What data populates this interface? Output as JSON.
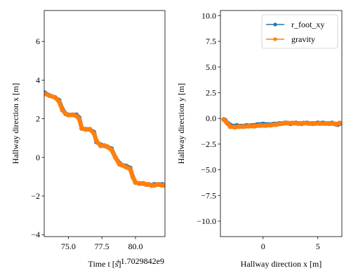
{
  "colors": {
    "series1": "#1f77b4",
    "series2": "#ff7f0e",
    "axis": "#000000",
    "legend_border": "#cccccc"
  },
  "chart_data": [
    {
      "type": "scatter",
      "title": "",
      "xlabel": "Time $t$ [s]",
      "xlabel_display": "Time t [s]",
      "offset_text": "+1.7029842e9",
      "ylabel": "Hallway direction $x$ [m]",
      "ylabel_display": "Hallway direction x [m]",
      "xlim": [
        73.2,
        82.2
      ],
      "ylim": [
        -4.1,
        7.6
      ],
      "xticks": [
        75.0,
        77.5,
        80.0
      ],
      "xtick_labels": [
        "75.0",
        "77.5",
        "80.0"
      ],
      "yticks": [
        -4,
        -2,
        0,
        2,
        4,
        6
      ],
      "ytick_labels": [
        "−4",
        "−2",
        "0",
        "2",
        "4",
        "6"
      ],
      "legend": "none",
      "grid": false,
      "series": [
        {
          "color_key": "series1",
          "x": [
            73.2,
            73.6,
            74.0,
            74.3,
            74.55,
            74.8,
            75.0,
            75.3,
            75.6,
            75.8,
            76.0,
            76.3,
            76.6,
            76.9,
            77.1,
            77.4,
            77.7,
            77.9,
            78.2,
            78.5,
            78.8,
            79.0,
            79.3,
            79.6,
            79.8,
            80.0,
            80.3,
            80.6,
            80.8,
            81.0,
            81.2,
            81.4,
            81.7,
            82.0,
            82.2
          ],
          "y": [
            3.35,
            3.2,
            3.1,
            2.95,
            2.5,
            2.25,
            2.2,
            2.2,
            2.2,
            2.05,
            1.5,
            1.45,
            1.45,
            1.3,
            0.8,
            0.65,
            0.6,
            0.55,
            0.45,
            0.0,
            -0.3,
            -0.4,
            -0.45,
            -0.55,
            -1.0,
            -1.3,
            -1.35,
            -1.35,
            -1.4,
            -1.4,
            -1.45,
            -1.4,
            -1.4,
            -1.4,
            -1.45
          ]
        },
        {
          "color_key": "series2",
          "x": [
            73.2,
            73.6,
            74.0,
            74.3,
            74.55,
            74.8,
            75.0,
            75.3,
            75.6,
            75.8,
            76.0,
            76.3,
            76.6,
            76.9,
            77.1,
            77.4,
            77.7,
            77.9,
            78.2,
            78.5,
            78.8,
            79.0,
            79.3,
            79.6,
            79.8,
            80.0,
            80.3,
            80.6,
            80.8,
            81.0,
            81.2,
            81.4,
            81.7,
            82.0,
            82.2
          ],
          "y": [
            3.3,
            3.2,
            3.1,
            2.9,
            2.45,
            2.25,
            2.2,
            2.2,
            2.15,
            2.0,
            1.5,
            1.45,
            1.45,
            1.25,
            0.85,
            0.6,
            0.6,
            0.55,
            0.4,
            0.0,
            -0.35,
            -0.4,
            -0.5,
            -0.6,
            -1.0,
            -1.3,
            -1.35,
            -1.35,
            -1.4,
            -1.4,
            -1.45,
            -1.45,
            -1.4,
            -1.45,
            -1.45
          ]
        }
      ]
    },
    {
      "type": "line",
      "title": "",
      "xlabel": "Hallway direction $x$ [m]",
      "xlabel_display": "Hallway direction x [m]",
      "ylabel": "Hallway direction $y$ [m]",
      "ylabel_display": "Hallway direction y [m]",
      "xlim": [
        -3.9,
        7.2
      ],
      "ylim": [
        -11.5,
        10.5
      ],
      "xticks": [
        0,
        5
      ],
      "xtick_labels": [
        "0",
        "5"
      ],
      "yticks": [
        -10.0,
        -7.5,
        -5.0,
        -2.5,
        0.0,
        2.5,
        5.0,
        7.5,
        10.0
      ],
      "ytick_labels": [
        "−10.0",
        "−7.5",
        "−5.0",
        "−2.5",
        "0.0",
        "2.5",
        "5.0",
        "7.5",
        "10.0"
      ],
      "legend": "top-right",
      "grid": false,
      "series": [
        {
          "name": "r_foot_xy",
          "color_key": "series1",
          "x": [
            -3.5,
            -3.2,
            -2.8,
            -2.4,
            -2.0,
            -1.5,
            -1.0,
            -0.5,
            0.0,
            0.5,
            1.0,
            1.5,
            2.0,
            2.5,
            3.0,
            3.5,
            4.0,
            4.5,
            5.0,
            5.5,
            6.0,
            6.3,
            6.6,
            6.8,
            7.0
          ],
          "y": [
            -0.15,
            -0.5,
            -0.75,
            -0.7,
            -0.75,
            -0.7,
            -0.7,
            -0.6,
            -0.55,
            -0.6,
            -0.55,
            -0.5,
            -0.45,
            -0.5,
            -0.45,
            -0.5,
            -0.45,
            -0.5,
            -0.45,
            -0.45,
            -0.5,
            -0.45,
            -0.55,
            -0.6,
            -0.5
          ]
        },
        {
          "name": "gravity",
          "color_key": "series2",
          "x": [
            -3.6,
            -3.3,
            -3.0,
            -2.6,
            -2.2,
            -1.8,
            -1.3,
            -0.8,
            -0.3,
            0.2,
            0.7,
            1.2,
            1.7,
            2.2,
            2.7,
            3.2,
            3.7,
            4.2,
            4.7,
            5.2,
            5.7,
            6.1,
            6.4,
            6.7,
            7.0
          ],
          "y": [
            -0.1,
            -0.45,
            -0.8,
            -0.85,
            -0.8,
            -0.8,
            -0.75,
            -0.75,
            -0.7,
            -0.7,
            -0.65,
            -0.6,
            -0.5,
            -0.45,
            -0.45,
            -0.5,
            -0.45,
            -0.5,
            -0.5,
            -0.5,
            -0.5,
            -0.5,
            -0.5,
            -0.55,
            -0.45
          ]
        }
      ]
    }
  ]
}
